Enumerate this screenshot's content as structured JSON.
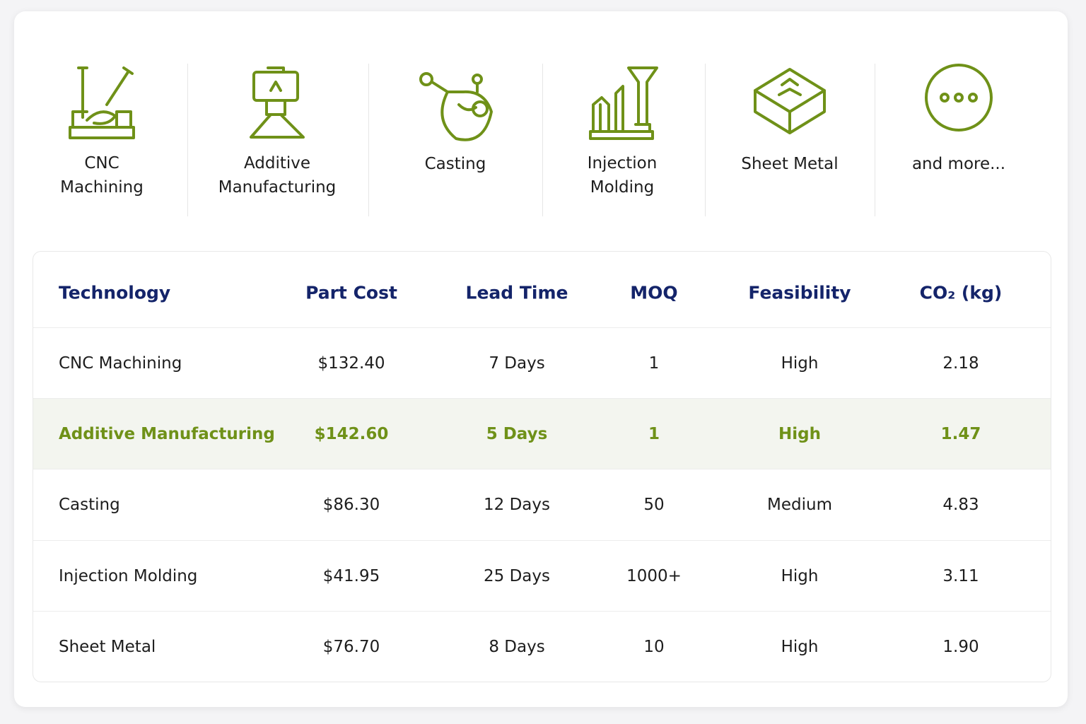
{
  "icons": [
    {
      "label": [
        "CNC",
        "Machining"
      ]
    },
    {
      "label": [
        "Additive",
        "Manufacturing"
      ]
    },
    {
      "label": [
        "Casting"
      ]
    },
    {
      "label": [
        "Injection",
        "Molding"
      ]
    },
    {
      "label": [
        "Sheet Metal"
      ]
    },
    {
      "label": [
        "and more..."
      ]
    }
  ],
  "table": {
    "header": [
      "Technology",
      "Part Cost",
      "Lead Time",
      "MOQ",
      "Feasibility",
      "CO₂ (kg)"
    ],
    "rows": [
      [
        "CNC Machining",
        "$132.40",
        "7 Days",
        "1",
        "High",
        "2.18"
      ],
      [
        "Additive Manufacturing",
        "$142.60",
        "5 Days",
        "1",
        "High",
        "1.47"
      ],
      [
        "Casting",
        "$86.30",
        "12 Days",
        "50",
        "Medium",
        "4.83"
      ],
      [
        "Injection Molding",
        "$41.95",
        "25 Days",
        "1000+",
        "High",
        "3.11"
      ],
      [
        "Sheet Metal",
        "$76.70",
        "8 Days",
        "10",
        "High",
        "1.90"
      ]
    ],
    "highlighted_row": 1,
    "highlight_color": "#6f9118"
  }
}
